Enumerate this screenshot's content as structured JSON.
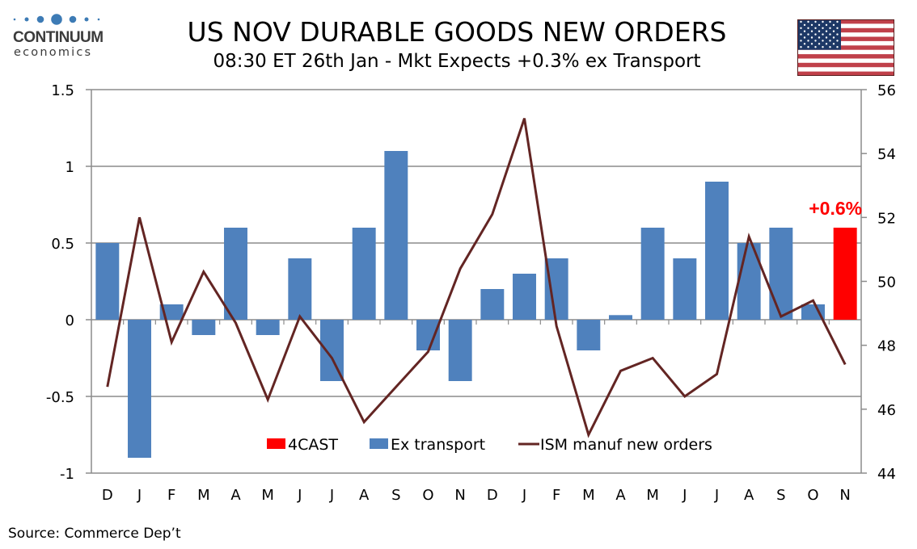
{
  "header": {
    "brand": "CONTINUUM",
    "brand_sub": "economics",
    "title": "US NOV DURABLE GOODS NEW ORDERS",
    "subtitle": "08:30 ET 26th Jan - Mkt Expects +0.3% ex Transport",
    "flag_icon": "us-flag-icon"
  },
  "footer": {
    "source": "Source: Commerce Dep’t"
  },
  "colors": {
    "ex_transport": "#4f81bd",
    "forecast": "#ff0000",
    "ism": "#632523",
    "grid": "#8c8c8c",
    "brand": "#3d7bb5"
  },
  "chart_data": {
    "type": "bar",
    "title": "US NOV DURABLE GOODS NEW ORDERS",
    "subtitle": "08:30 ET 26th Jan - Mkt Expects +0.3% ex Transport",
    "xlabel": "",
    "ylabel": "",
    "categories": [
      "D",
      "J",
      "F",
      "M",
      "A",
      "M",
      "J",
      "J",
      "A",
      "S",
      "O",
      "N",
      "D",
      "J",
      "F",
      "M",
      "A",
      "M",
      "J",
      "J",
      "A",
      "S",
      "O",
      "N"
    ],
    "ylim": [
      -1,
      1.5
    ],
    "y_ticks": [
      "1.5",
      "1",
      "0.5",
      "0",
      "-0.5",
      "-1"
    ],
    "y_tick_values": [
      1.5,
      1,
      0.5,
      0,
      -0.5,
      -1
    ],
    "y2lim": [
      44,
      56
    ],
    "y2_ticks": [
      "56",
      "54",
      "52",
      "50",
      "48",
      "46",
      "44"
    ],
    "y2_tick_values": [
      56,
      54,
      52,
      50,
      48,
      46,
      44
    ],
    "grid": true,
    "legend_position": "bottom-center",
    "series": [
      {
        "name": "4CAST",
        "kind": "bar",
        "axis": "left",
        "values": [
          null,
          null,
          null,
          null,
          null,
          null,
          null,
          null,
          null,
          null,
          null,
          null,
          null,
          null,
          null,
          null,
          null,
          null,
          null,
          null,
          null,
          null,
          null,
          0.6
        ]
      },
      {
        "name": "Ex transport",
        "kind": "bar",
        "axis": "left",
        "values": [
          0.5,
          -0.9,
          0.1,
          -0.1,
          0.6,
          -0.1,
          0.4,
          -0.4,
          0.6,
          1.1,
          -0.2,
          -0.4,
          0.2,
          0.3,
          0.4,
          -0.2,
          0.03,
          0.6,
          0.4,
          0.9,
          0.5,
          0.6,
          0.1,
          null
        ]
      },
      {
        "name": "ISM manuf new orders",
        "kind": "line",
        "axis": "right",
        "values": [
          46.7,
          52.0,
          48.1,
          50.3,
          48.7,
          46.3,
          48.9,
          47.6,
          45.6,
          46.7,
          47.8,
          50.4,
          52.1,
          55.1,
          48.6,
          45.2,
          47.2,
          47.6,
          46.4,
          47.1,
          51.4,
          48.9,
          49.4,
          47.4
        ]
      }
    ],
    "annotations": [
      {
        "text": "+0.6%",
        "category_index": 23,
        "value": 0.6
      }
    ]
  }
}
